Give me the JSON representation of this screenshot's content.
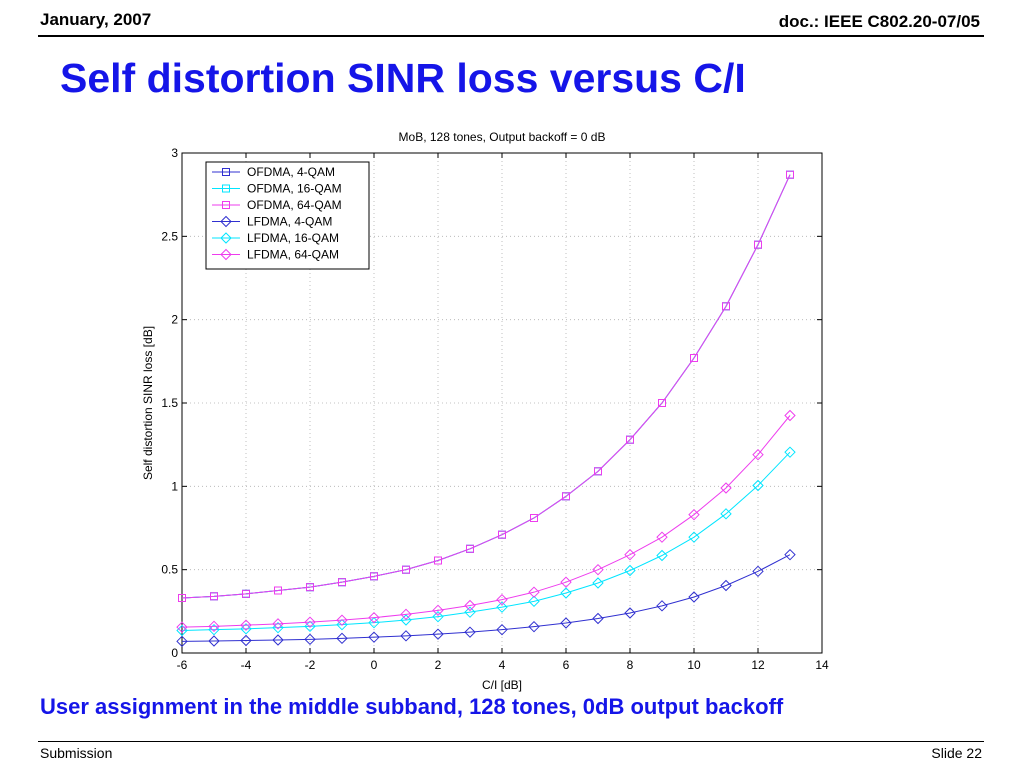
{
  "header": {
    "date": "January, 2007",
    "doc": "doc.: IEEE C802.20-07/05"
  },
  "slide_title": "Self distortion SINR loss versus C/I",
  "caption": "User assignment in the middle subband, 128 tones, 0dB output backoff",
  "footer": {
    "left": "Submission",
    "right": "Slide 22"
  },
  "colors": {
    "accent": "#1515e8",
    "blue": "#3030d0",
    "cyan": "#00e5ff",
    "magenta": "#ee3cee",
    "purple": "#8a50e0"
  },
  "chart_data": {
    "type": "line",
    "title": "MoB, 128 tones, Output backoff = 0 dB",
    "xlabel": "C/I [dB]",
    "ylabel": "Self distortion SINR loss [dB]",
    "xlim": [
      -6,
      14
    ],
    "ylim": [
      0,
      3
    ],
    "xticks": [
      -6,
      -4,
      -2,
      0,
      2,
      4,
      6,
      8,
      10,
      12,
      14
    ],
    "yticks": [
      0,
      0.5,
      1,
      1.5,
      2,
      2.5,
      3
    ],
    "grid": true,
    "legend_position": "top-left",
    "x": [
      -6,
      -5,
      -4,
      -3,
      -2,
      -1,
      0,
      1,
      2,
      3,
      4,
      5,
      6,
      7,
      8,
      9,
      10,
      11,
      12,
      13
    ],
    "series": [
      {
        "name": "OFDMA,  4-QAM",
        "color": "#3030d0",
        "marker": "square",
        "values": [
          0.33,
          0.34,
          0.355,
          0.375,
          0.395,
          0.425,
          0.46,
          0.5,
          0.555,
          0.625,
          0.71,
          0.81,
          0.94,
          1.09,
          1.28,
          1.5,
          1.77,
          2.08,
          2.45,
          2.87
        ]
      },
      {
        "name": "OFDMA, 16-QAM",
        "color": "#00e5ff",
        "marker": "square",
        "values": [
          0.33,
          0.34,
          0.355,
          0.375,
          0.395,
          0.425,
          0.46,
          0.5,
          0.555,
          0.625,
          0.71,
          0.81,
          0.94,
          1.09,
          1.28,
          1.5,
          1.77,
          2.08,
          2.45,
          2.87
        ]
      },
      {
        "name": "OFDMA, 64-QAM",
        "color": "#ee3cee",
        "marker": "square",
        "values": [
          0.33,
          0.34,
          0.355,
          0.375,
          0.395,
          0.425,
          0.46,
          0.5,
          0.555,
          0.625,
          0.71,
          0.81,
          0.94,
          1.09,
          1.28,
          1.5,
          1.77,
          2.08,
          2.45,
          2.87
        ]
      },
      {
        "name": "LFDMA,  4-QAM",
        "color": "#3030d0",
        "marker": "diamond",
        "values": [
          0.07,
          0.072,
          0.075,
          0.078,
          0.082,
          0.088,
          0.095,
          0.103,
          0.113,
          0.125,
          0.14,
          0.158,
          0.18,
          0.207,
          0.24,
          0.283,
          0.336,
          0.405,
          0.49,
          0.59
        ]
      },
      {
        "name": "LFDMA, 16-QAM",
        "color": "#00e5ff",
        "marker": "diamond",
        "values": [
          0.135,
          0.14,
          0.145,
          0.152,
          0.16,
          0.17,
          0.182,
          0.198,
          0.218,
          0.245,
          0.275,
          0.31,
          0.36,
          0.42,
          0.495,
          0.585,
          0.695,
          0.835,
          1.005,
          1.205
        ]
      },
      {
        "name": "LFDMA, 64-QAM",
        "color": "#ee3cee",
        "marker": "diamond",
        "values": [
          0.155,
          0.16,
          0.167,
          0.175,
          0.185,
          0.197,
          0.212,
          0.232,
          0.256,
          0.285,
          0.32,
          0.365,
          0.425,
          0.5,
          0.59,
          0.695,
          0.83,
          0.99,
          1.19,
          1.425
        ]
      }
    ]
  }
}
